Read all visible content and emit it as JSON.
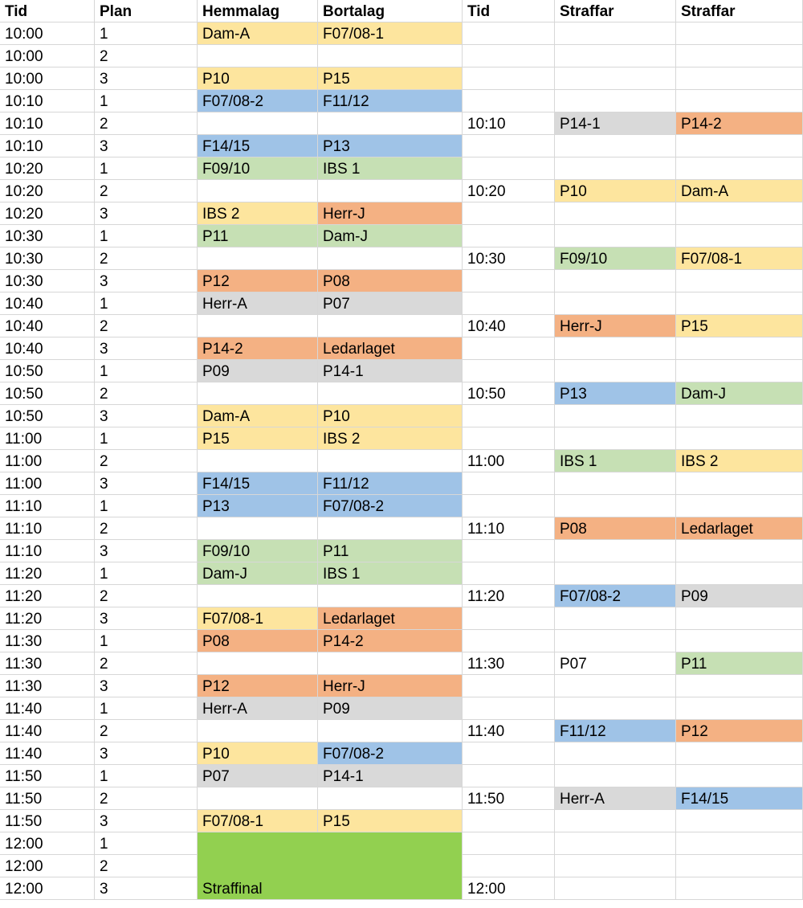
{
  "colors": {
    "yellow": "#fde59e",
    "blue": "#9fc3e7",
    "green": "#c6e0b4",
    "orange": "#f4b183",
    "grey": "#d9d9d9",
    "final_green": "#92d050"
  },
  "header": [
    "Tid",
    "Plan",
    "Hemmalag",
    "Bortalag",
    "Tid",
    "Straffar",
    "Straffar"
  ],
  "rows": [
    {
      "cells": [
        "10:00",
        "1",
        "Dam-A",
        "F07/08-1",
        "",
        "",
        ""
      ],
      "fills": [
        "",
        "",
        "yellow",
        "yellow",
        "",
        "",
        ""
      ]
    },
    {
      "cells": [
        "10:00",
        "2",
        "",
        "",
        "",
        "",
        ""
      ],
      "fills": [
        "",
        "",
        "",
        "",
        "",
        "",
        ""
      ]
    },
    {
      "cells": [
        "10:00",
        "3",
        "P10",
        "P15",
        "",
        "",
        ""
      ],
      "fills": [
        "",
        "",
        "yellow",
        "yellow",
        "",
        "",
        ""
      ]
    },
    {
      "cells": [
        "10:10",
        "1",
        "F07/08-2",
        "F11/12",
        "",
        "",
        ""
      ],
      "fills": [
        "",
        "",
        "blue",
        "blue",
        "",
        "",
        ""
      ]
    },
    {
      "cells": [
        "10:10",
        "2",
        "",
        "",
        "10:10",
        "P14-1",
        "P14-2"
      ],
      "fills": [
        "",
        "",
        "",
        "",
        "",
        "grey",
        "orange"
      ]
    },
    {
      "cells": [
        "10:10",
        "3",
        "F14/15",
        "P13",
        "",
        "",
        ""
      ],
      "fills": [
        "",
        "",
        "blue",
        "blue",
        "",
        "",
        ""
      ]
    },
    {
      "cells": [
        "10:20",
        "1",
        "F09/10",
        "IBS 1",
        "",
        "",
        ""
      ],
      "fills": [
        "",
        "",
        "green",
        "green",
        "",
        "",
        ""
      ]
    },
    {
      "cells": [
        "10:20",
        "2",
        "",
        "",
        "10:20",
        "P10",
        "Dam-A"
      ],
      "fills": [
        "",
        "",
        "",
        "",
        "",
        "yellow",
        "yellow"
      ]
    },
    {
      "cells": [
        "10:20",
        "3",
        "IBS 2",
        "Herr-J",
        "",
        "",
        ""
      ],
      "fills": [
        "",
        "",
        "yellow",
        "orange",
        "",
        "",
        ""
      ]
    },
    {
      "cells": [
        "10:30",
        "1",
        "P11",
        "Dam-J",
        "",
        "",
        ""
      ],
      "fills": [
        "",
        "",
        "green",
        "green",
        "",
        "",
        ""
      ]
    },
    {
      "cells": [
        "10:30",
        "2",
        "",
        "",
        "10:30",
        "F09/10",
        "F07/08-1"
      ],
      "fills": [
        "",
        "",
        "",
        "",
        "",
        "green",
        "yellow"
      ]
    },
    {
      "cells": [
        "10:30",
        "3",
        "P12",
        "P08",
        "",
        "",
        ""
      ],
      "fills": [
        "",
        "",
        "orange",
        "orange",
        "",
        "",
        ""
      ]
    },
    {
      "cells": [
        "10:40",
        "1",
        "Herr-A",
        "P07",
        "",
        "",
        ""
      ],
      "fills": [
        "",
        "",
        "grey",
        "grey",
        "",
        "",
        ""
      ]
    },
    {
      "cells": [
        "10:40",
        "2",
        "",
        "",
        "10:40",
        "Herr-J",
        "P15"
      ],
      "fills": [
        "",
        "",
        "",
        "",
        "",
        "orange",
        "yellow"
      ]
    },
    {
      "cells": [
        "10:40",
        "3",
        "P14-2",
        "Ledarlaget",
        "",
        "",
        ""
      ],
      "fills": [
        "",
        "",
        "orange",
        "orange",
        "",
        "",
        ""
      ]
    },
    {
      "cells": [
        "10:50",
        "1",
        "P09",
        "P14-1",
        "",
        "",
        ""
      ],
      "fills": [
        "",
        "",
        "grey",
        "grey",
        "",
        "",
        ""
      ]
    },
    {
      "cells": [
        "10:50",
        "2",
        "",
        "",
        "10:50",
        "P13",
        "Dam-J"
      ],
      "fills": [
        "",
        "",
        "",
        "",
        "",
        "blue",
        "green"
      ]
    },
    {
      "cells": [
        "10:50",
        "3",
        "Dam-A",
        "P10",
        "",
        "",
        ""
      ],
      "fills": [
        "",
        "",
        "yellow",
        "yellow",
        "",
        "",
        ""
      ]
    },
    {
      "cells": [
        "11:00",
        "1",
        "P15",
        "IBS 2",
        "",
        "",
        ""
      ],
      "fills": [
        "",
        "",
        "yellow",
        "yellow",
        "",
        "",
        ""
      ]
    },
    {
      "cells": [
        "11:00",
        "2",
        "",
        "",
        "11:00",
        "IBS 1",
        "IBS 2"
      ],
      "fills": [
        "",
        "",
        "",
        "",
        "",
        "green",
        "yellow"
      ]
    },
    {
      "cells": [
        "11:00",
        "3",
        "F14/15",
        "F11/12",
        "",
        "",
        ""
      ],
      "fills": [
        "",
        "",
        "blue",
        "blue",
        "",
        "",
        ""
      ]
    },
    {
      "cells": [
        "11:10",
        "1",
        "P13",
        "F07/08-2",
        "",
        "",
        ""
      ],
      "fills": [
        "",
        "",
        "blue",
        "blue",
        "",
        "",
        ""
      ]
    },
    {
      "cells": [
        "11:10",
        "2",
        "",
        "",
        "11:10",
        "P08",
        "Ledarlaget"
      ],
      "fills": [
        "",
        "",
        "",
        "",
        "",
        "orange",
        "orange"
      ]
    },
    {
      "cells": [
        "11:10",
        "3",
        "F09/10",
        "P11",
        "",
        "",
        ""
      ],
      "fills": [
        "",
        "",
        "green",
        "green",
        "",
        "",
        ""
      ]
    },
    {
      "cells": [
        "11:20",
        "1",
        "Dam-J",
        "IBS 1",
        "",
        "",
        ""
      ],
      "fills": [
        "",
        "",
        "green",
        "green",
        "",
        "",
        ""
      ]
    },
    {
      "cells": [
        "11:20",
        "2",
        "",
        "",
        "11:20",
        "F07/08-2",
        "P09"
      ],
      "fills": [
        "",
        "",
        "",
        "",
        "",
        "blue",
        "grey"
      ]
    },
    {
      "cells": [
        "11:20",
        "3",
        "F07/08-1",
        "Ledarlaget",
        "",
        "",
        ""
      ],
      "fills": [
        "",
        "",
        "yellow",
        "orange",
        "",
        "",
        ""
      ]
    },
    {
      "cells": [
        "11:30",
        "1",
        "P08",
        "P14-2",
        "",
        "",
        ""
      ],
      "fills": [
        "",
        "",
        "orange",
        "orange",
        "",
        "",
        ""
      ]
    },
    {
      "cells": [
        "11:30",
        "2",
        "",
        "",
        "11:30",
        "P07",
        "P11"
      ],
      "fills": [
        "",
        "",
        "",
        "",
        "",
        "",
        "green"
      ]
    },
    {
      "cells": [
        "11:30",
        "3",
        "P12",
        "Herr-J",
        "",
        "",
        ""
      ],
      "fills": [
        "",
        "",
        "orange",
        "orange",
        "",
        "",
        ""
      ]
    },
    {
      "cells": [
        "11:40",
        "1",
        "Herr-A",
        "P09",
        "",
        "",
        ""
      ],
      "fills": [
        "",
        "",
        "grey",
        "grey",
        "",
        "",
        ""
      ]
    },
    {
      "cells": [
        "11:40",
        "2",
        "",
        "",
        "11:40",
        "F11/12",
        "P12"
      ],
      "fills": [
        "",
        "",
        "",
        "",
        "",
        "blue",
        "orange"
      ]
    },
    {
      "cells": [
        "11:40",
        "3",
        "P10",
        "F07/08-2",
        "",
        "",
        ""
      ],
      "fills": [
        "",
        "",
        "yellow",
        "blue",
        "",
        "",
        ""
      ]
    },
    {
      "cells": [
        "11:50",
        "1",
        "P07",
        "P14-1",
        "",
        "",
        ""
      ],
      "fills": [
        "",
        "",
        "grey",
        "grey",
        "",
        "",
        ""
      ]
    },
    {
      "cells": [
        "11:50",
        "2",
        "",
        "",
        "11:50",
        "Herr-A",
        "F14/15"
      ],
      "fills": [
        "",
        "",
        "",
        "",
        "",
        "grey",
        "blue"
      ]
    },
    {
      "cells": [
        "11:50",
        "3",
        "F07/08-1",
        "P15",
        "",
        "",
        ""
      ],
      "fills": [
        "",
        "",
        "yellow",
        "yellow",
        "",
        "",
        ""
      ]
    },
    {
      "cells": [
        "12:00",
        "1",
        "",
        "",
        "",
        "",
        ""
      ],
      "fills": [
        "",
        "",
        "",
        "",
        "",
        "",
        ""
      ]
    },
    {
      "cells": [
        "12:00",
        "2",
        "",
        "",
        "",
        "",
        ""
      ],
      "fills": [
        "",
        "",
        "",
        "",
        "",
        "",
        ""
      ]
    },
    {
      "cells": [
        "12:00",
        "3",
        "",
        "",
        "12:00",
        "",
        ""
      ],
      "fills": [
        "",
        "",
        "",
        "",
        "",
        "",
        ""
      ]
    }
  ],
  "final": {
    "label": "Straffinal",
    "fill": "final_green"
  }
}
